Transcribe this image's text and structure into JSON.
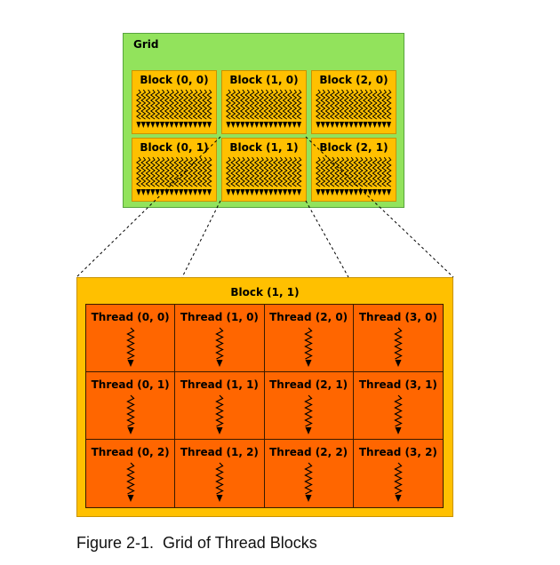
{
  "grid": {
    "title": "Grid",
    "blocks": [
      {
        "label": "Block (0, 0)",
        "col": 0,
        "row": 0
      },
      {
        "label": "Block (1, 0)",
        "col": 1,
        "row": 0
      },
      {
        "label": "Block (2, 0)",
        "col": 2,
        "row": 0
      },
      {
        "label": "Block (0, 1)",
        "col": 0,
        "row": 1
      },
      {
        "label": "Block (1, 1)",
        "col": 1,
        "row": 1
      },
      {
        "label": "Block (2, 1)",
        "col": 2,
        "row": 1
      }
    ]
  },
  "exploded_block": {
    "title": "Block (1, 1)",
    "threads": [
      [
        {
          "label": "Thread (0, 0)"
        },
        {
          "label": "Thread (1, 0)"
        },
        {
          "label": "Thread (2, 0)"
        },
        {
          "label": "Thread (3, 0)"
        }
      ],
      [
        {
          "label": "Thread (0, 1)"
        },
        {
          "label": "Thread (1, 1)"
        },
        {
          "label": "Thread (2, 1)"
        },
        {
          "label": "Thread (3, 1)"
        }
      ],
      [
        {
          "label": "Thread (0, 2)"
        },
        {
          "label": "Thread (1, 2)"
        },
        {
          "label": "Thread (2, 2)"
        },
        {
          "label": "Thread (3, 2)"
        }
      ]
    ]
  },
  "caption": "Figure 2-1.  Grid of Thread Blocks",
  "colors": {
    "grid_fill": "#92e35c",
    "block_fill": "#ffc000",
    "thread_fill": "#ff6600",
    "line": "#000000"
  }
}
